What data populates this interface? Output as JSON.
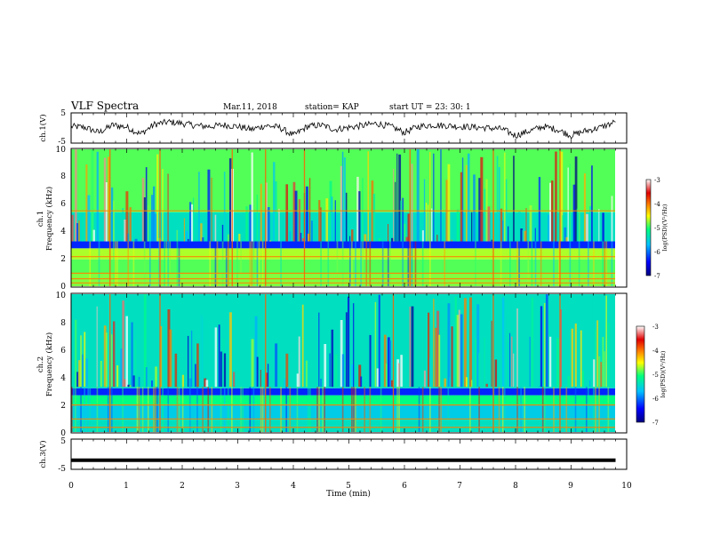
{
  "header": {
    "title": "VLF Spectra",
    "date": "Mar.11, 2018",
    "station": "station= KAP",
    "start": "start  UT  =   23: 30: 1"
  },
  "chart_data": [
    {
      "type": "line",
      "name": "waveform-ch1",
      "ylabel": "ch.1(V)",
      "ylim": [
        -5,
        5
      ],
      "yticks": [
        "5",
        "-5"
      ],
      "xlim": [
        0,
        10
      ],
      "x": [
        0,
        0.25,
        0.5,
        0.75,
        1.0,
        1.25,
        1.5,
        1.75,
        2.0,
        2.25,
        2.5,
        2.75,
        3.0,
        3.25,
        3.5,
        3.75,
        4.0,
        4.25,
        4.5,
        4.75,
        5.0,
        5.25,
        5.5,
        5.75,
        6.0,
        6.25,
        6.5,
        6.75,
        7.0,
        7.25,
        7.5,
        7.75,
        8.0,
        8.25,
        8.5,
        8.75,
        9.0,
        9.25,
        9.5,
        9.8
      ],
      "values": [
        0.5,
        0.2,
        -1.5,
        1.0,
        0.3,
        -2.0,
        1.2,
        2.0,
        1.5,
        0.8,
        0.5,
        1.0,
        0.5,
        -0.5,
        0.8,
        0.2,
        -2.5,
        0.5,
        1.0,
        -0.5,
        0.2,
        0.8,
        1.5,
        0.5,
        -1.5,
        0.5,
        1.0,
        0.8,
        0.5,
        0.3,
        0.0,
        -0.3,
        -2.5,
        -1.0,
        0.5,
        -0.5,
        -2.5,
        -1.0,
        0.0,
        2.0
      ]
    },
    {
      "type": "heatmap",
      "name": "spectrogram-ch1",
      "ylabel_channel": "ch.1",
      "ylabel": "Frequency (kHz)",
      "ylim": [
        0,
        10
      ],
      "yticks": [
        "0",
        "2",
        "4",
        "6",
        "8",
        "10"
      ],
      "xlim": [
        0,
        9.82
      ],
      "colorbar": {
        "label": "log(PSD)(V²/Hz)",
        "range": [
          -7,
          -3
        ],
        "ticks": [
          "-3",
          "-4",
          "-5",
          "-6",
          "-7"
        ],
        "colors": [
          "#000080",
          "#0000ff",
          "#00c0ff",
          "#00ff80",
          "#ffff00",
          "#ff8000",
          "#e00000",
          "#ffffff"
        ]
      },
      "band_levels": [
        {
          "f_min": 0.0,
          "f_max": 1.0,
          "level": -4.8
        },
        {
          "f_min": 1.0,
          "f_max": 2.0,
          "level": -4.9
        },
        {
          "f_min": 2.0,
          "f_max": 2.8,
          "level": -4.7
        },
        {
          "f_min": 2.8,
          "f_max": 3.3,
          "level": -6.3
        },
        {
          "f_min": 3.3,
          "f_max": 5.4,
          "level": -5.4
        },
        {
          "f_min": 5.4,
          "f_max": 10.0,
          "level": -4.9
        }
      ],
      "tones_khz": [
        0.3,
        0.6,
        1.0,
        2.2,
        5.5
      ],
      "vertical_events_min": [
        0.7,
        1.6,
        2.9,
        3.5,
        4.2,
        6.1,
        7.6,
        8.8
      ]
    },
    {
      "type": "heatmap",
      "name": "spectrogram-ch2",
      "ylabel_channel": "ch.2",
      "ylabel": "Frequency (kHz)",
      "ylim": [
        0,
        10
      ],
      "yticks": [
        "0",
        "2",
        "4",
        "6",
        "8",
        "10"
      ],
      "xlim": [
        0,
        9.82
      ],
      "colorbar": {
        "label": "log(PSD)(V²/Hz)",
        "range": [
          -7,
          -3
        ],
        "ticks": [
          "-3",
          "-4",
          "-5",
          "-6",
          "-7"
        ],
        "colors": [
          "#000080",
          "#0000ff",
          "#00c0ff",
          "#00ff80",
          "#ffff00",
          "#ff8000",
          "#e00000",
          "#ffffff"
        ]
      },
      "band_levels": [
        {
          "f_min": 0.0,
          "f_max": 1.0,
          "level": -5.4
        },
        {
          "f_min": 1.0,
          "f_max": 2.0,
          "level": -5.6
        },
        {
          "f_min": 2.0,
          "f_max": 2.7,
          "level": -5.1
        },
        {
          "f_min": 2.7,
          "f_max": 3.2,
          "level": -6.3
        },
        {
          "f_min": 3.2,
          "f_max": 10.0,
          "level": -5.4
        }
      ],
      "tones_khz": [
        0.4,
        1.0,
        2.0
      ],
      "vertical_events_min": [
        0.7,
        1.6,
        3.5,
        5.8,
        7.6,
        8.8
      ]
    },
    {
      "type": "line",
      "name": "waveform-ch3",
      "ylabel": "ch.3(V)",
      "ylim": [
        -5,
        5
      ],
      "yticks": [
        "5",
        "-5"
      ],
      "xlim": [
        0,
        10
      ],
      "x": [
        0,
        9.8
      ],
      "values": [
        -2.0,
        -2.0
      ]
    },
    {
      "type": "axis",
      "name": "time-axis",
      "xlabel": "Time (min)",
      "xlim": [
        0,
        10
      ],
      "xticks": [
        "0",
        "1",
        "2",
        "3",
        "4",
        "5",
        "6",
        "7",
        "8",
        "9",
        "10"
      ]
    }
  ]
}
